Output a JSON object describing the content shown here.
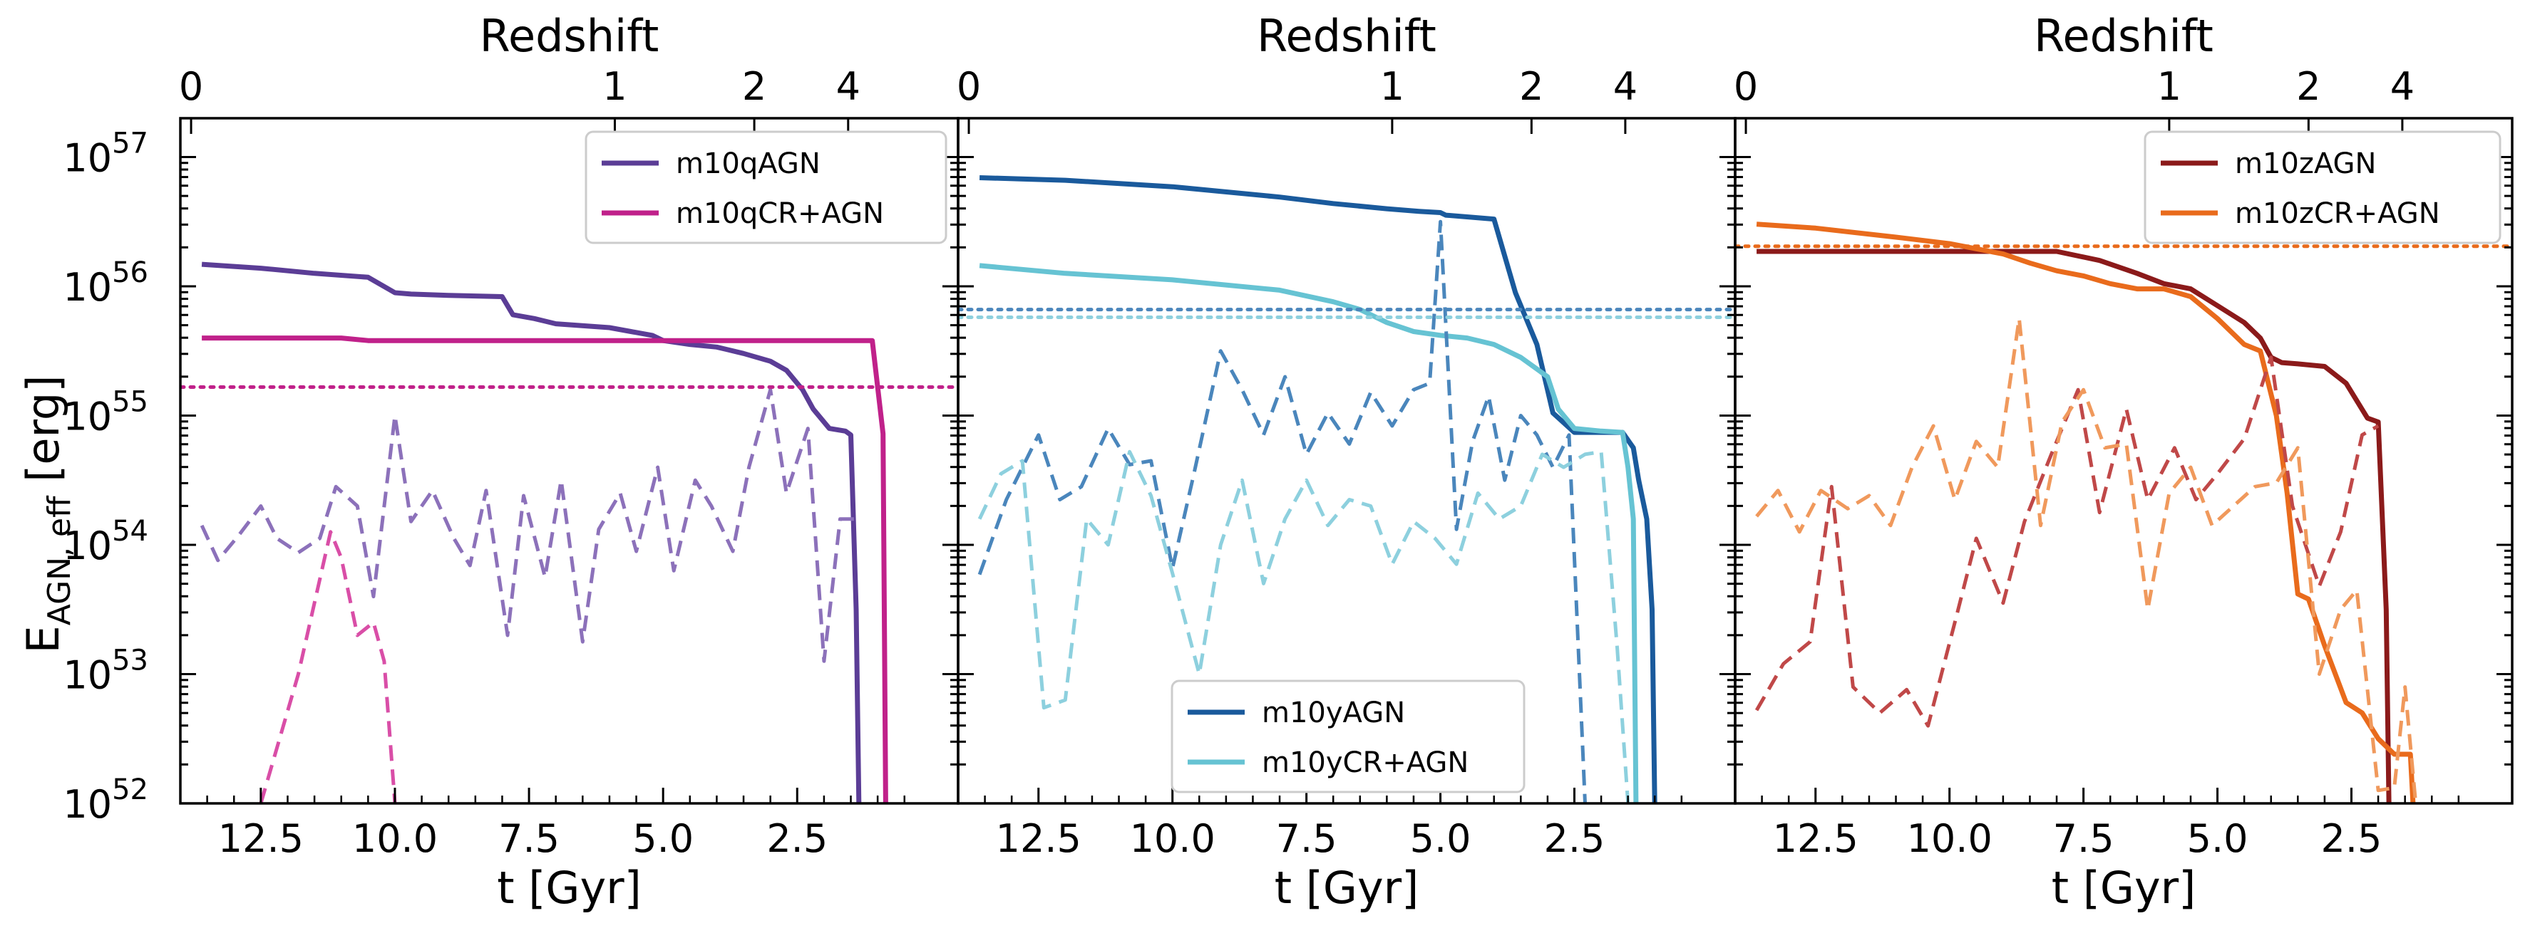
{
  "figure": {
    "ylabel_main": "E",
    "ylabel_sub": "AGN, eff",
    "ylabel_unit": " [erg]",
    "y_ticks": [
      {
        "base": "10",
        "exp": "52",
        "value": 52
      },
      {
        "base": "10",
        "exp": "53",
        "value": 53
      },
      {
        "base": "10",
        "exp": "54",
        "value": 54
      },
      {
        "base": "10",
        "exp": "55",
        "value": 55
      },
      {
        "base": "10",
        "exp": "56",
        "value": 56
      },
      {
        "base": "10",
        "exp": "57",
        "value": 57
      }
    ]
  },
  "chart_data": [
    {
      "type": "line",
      "xlabel": "t [Gyr]",
      "top_xlabel": "Redshift",
      "xlim": [
        14.0,
        -0.5
      ],
      "ylim_log10": [
        52,
        57.3
      ],
      "y_scale": "log",
      "x_ticks": [
        "12.5",
        "10.0",
        "7.5",
        "5.0",
        "2.5"
      ],
      "x_tick_values": [
        12.5,
        10.0,
        7.5,
        5.0,
        2.5
      ],
      "top_ticks": [
        "0",
        "1",
        "2",
        "4"
      ],
      "top_tick_values": [
        13.8,
        5.9,
        3.3,
        1.55
      ],
      "legend_position": "top-right",
      "series": [
        {
          "name": "m10qAGN",
          "color": "#5b3d96",
          "style": "solid",
          "in_legend": true,
          "t": [
            13.6,
            12.5,
            11.5,
            10.5,
            10.0,
            9.7,
            9.0,
            8.0,
            7.8,
            7.4,
            7.0,
            6.0,
            5.6,
            5.2,
            5.0,
            4.5,
            4.0,
            3.5,
            3.0,
            2.7,
            2.4,
            2.2,
            1.9,
            1.6,
            1.5,
            1.4,
            1.35
          ],
          "log10E": [
            56.17,
            56.14,
            56.1,
            56.07,
            55.95,
            55.94,
            55.93,
            55.92,
            55.78,
            55.75,
            55.71,
            55.68,
            55.65,
            55.62,
            55.58,
            55.55,
            55.53,
            55.48,
            55.42,
            55.35,
            55.2,
            55.05,
            54.9,
            54.88,
            54.85,
            53.5,
            52.0
          ]
        },
        {
          "name": "m10qCR+AGN",
          "color": "#c0218a",
          "style": "solid",
          "in_legend": true,
          "t": [
            13.6,
            11.0,
            10.5,
            9.0,
            7.0,
            5.0,
            3.0,
            1.5,
            1.1,
            0.9,
            0.85
          ],
          "log10E": [
            55.6,
            55.6,
            55.58,
            55.58,
            55.58,
            55.58,
            55.58,
            55.58,
            55.58,
            54.86,
            52.0
          ]
        },
        {
          "name": "m10qAGN",
          "color": "#8c71ba",
          "style": "dashed",
          "in_legend": false,
          "t": [
            13.6,
            13.3,
            12.9,
            12.5,
            12.2,
            11.8,
            11.4,
            11.1,
            10.7,
            10.4,
            10.0,
            9.7,
            9.3,
            8.9,
            8.6,
            8.3,
            7.9,
            7.6,
            7.2,
            6.9,
            6.5,
            6.2,
            5.8,
            5.5,
            5.1,
            4.8,
            4.4,
            4.1,
            3.7,
            3.4,
            3.0,
            2.7,
            2.3,
            2.0,
            1.7,
            1.4
          ],
          "log10E": [
            54.15,
            53.88,
            54.08,
            54.3,
            54.05,
            53.94,
            54.05,
            54.45,
            54.3,
            53.6,
            55.0,
            54.18,
            54.42,
            54.05,
            53.84,
            54.42,
            53.3,
            54.38,
            53.75,
            54.5,
            53.25,
            54.12,
            54.4,
            53.95,
            54.6,
            53.8,
            54.5,
            54.3,
            53.95,
            54.6,
            55.2,
            54.4,
            54.9,
            53.1,
            54.2,
            54.2
          ]
        },
        {
          "name": "m10qCR+AGN",
          "color": "#d94ea7",
          "style": "dashed",
          "in_legend": false,
          "t": [
            12.5,
            11.8,
            11.2,
            11.0,
            10.7,
            10.4,
            10.2,
            10.0
          ],
          "log10E": [
            52.0,
            53.0,
            54.1,
            53.9,
            53.3,
            53.4,
            53.1,
            52.0
          ]
        },
        {
          "name": "m10qCR+AGN",
          "color": "#c0218a",
          "style": "dotted",
          "in_legend": false,
          "t": [
            14.0,
            -0.5
          ],
          "log10E": [
            55.22,
            55.22
          ]
        }
      ]
    },
    {
      "type": "line",
      "xlabel": "t [Gyr]",
      "top_xlabel": "Redshift",
      "xlim": [
        14.0,
        -0.5
      ],
      "ylim_log10": [
        52,
        57.3
      ],
      "y_scale": "log",
      "x_ticks": [
        "12.5",
        "10.0",
        "7.5",
        "5.0",
        "2.5"
      ],
      "x_tick_values": [
        12.5,
        10.0,
        7.5,
        5.0,
        2.5
      ],
      "top_ticks": [
        "0",
        "1",
        "2",
        "4"
      ],
      "top_tick_values": [
        13.8,
        5.9,
        3.3,
        1.55
      ],
      "legend_position": "bottom-center",
      "series": [
        {
          "name": "m10yAGN",
          "color": "#1a5a9c",
          "style": "solid",
          "in_legend": true,
          "t": [
            13.6,
            12.0,
            10.0,
            8.0,
            7.0,
            6.0,
            5.4,
            5.0,
            4.9,
            4.0,
            3.6,
            3.2,
            2.9,
            2.5,
            2.0,
            1.6,
            1.4,
            1.3,
            1.15,
            1.05,
            1.0
          ],
          "log10E": [
            56.84,
            56.82,
            56.77,
            56.69,
            56.64,
            56.6,
            56.58,
            56.57,
            56.55,
            56.52,
            55.95,
            55.55,
            55.02,
            54.87,
            54.87,
            54.87,
            54.75,
            54.5,
            54.2,
            53.5,
            52.0
          ]
        },
        {
          "name": "m10yCR+AGN",
          "color": "#66c3d3",
          "style": "solid",
          "in_legend": true,
          "t": [
            13.6,
            12.0,
            10.0,
            8.0,
            7.0,
            6.5,
            6.0,
            5.5,
            5.0,
            4.5,
            4.0,
            3.5,
            3.0,
            2.8,
            2.5,
            2.0,
            1.6,
            1.5,
            1.4,
            1.35
          ],
          "log10E": [
            56.16,
            56.1,
            56.05,
            55.97,
            55.88,
            55.82,
            55.72,
            55.65,
            55.62,
            55.6,
            55.55,
            55.45,
            55.3,
            55.05,
            54.9,
            54.88,
            54.87,
            54.6,
            54.2,
            52.0
          ]
        },
        {
          "name": "m10yAGN",
          "color": "#4a86bc",
          "style": "dashed",
          "in_legend": false,
          "t": [
            13.6,
            13.1,
            12.5,
            12.1,
            11.7,
            11.2,
            10.8,
            10.4,
            10.0,
            9.6,
            9.1,
            8.7,
            8.3,
            7.9,
            7.5,
            7.1,
            6.7,
            6.3,
            5.9,
            5.5,
            5.2,
            5.0,
            4.7,
            4.4,
            4.1,
            3.8,
            3.5,
            3.2,
            2.9,
            2.6,
            2.3
          ],
          "log10E": [
            53.77,
            54.35,
            54.85,
            54.35,
            54.45,
            54.9,
            54.62,
            54.65,
            53.82,
            54.55,
            55.5,
            55.2,
            54.85,
            55.3,
            54.7,
            55.02,
            54.78,
            55.18,
            54.92,
            55.2,
            55.25,
            56.5,
            54.12,
            54.8,
            55.15,
            54.5,
            55.0,
            54.85,
            54.6,
            54.85,
            52.0
          ]
        },
        {
          "name": "m10yCR+AGN",
          "color": "#8dd0de",
          "style": "dashed",
          "in_legend": false,
          "t": [
            13.6,
            13.2,
            12.8,
            12.4,
            12.0,
            11.6,
            11.2,
            10.8,
            10.4,
            10.0,
            9.5,
            9.1,
            8.7,
            8.3,
            7.9,
            7.5,
            7.1,
            6.7,
            6.3,
            5.9,
            5.5,
            5.1,
            4.7,
            4.3,
            3.9,
            3.5,
            3.1,
            2.7,
            2.3,
            2.0,
            1.7,
            1.5
          ],
          "log10E": [
            54.2,
            54.55,
            54.65,
            52.74,
            52.8,
            54.2,
            54.0,
            54.72,
            54.38,
            53.78,
            53.0,
            54.0,
            54.5,
            53.7,
            54.2,
            54.5,
            54.15,
            54.35,
            54.3,
            53.85,
            54.18,
            54.05,
            53.85,
            54.4,
            54.2,
            54.3,
            54.7,
            54.6,
            54.7,
            54.72,
            53.2,
            52.0
          ]
        },
        {
          "name": "m10yAGN",
          "color": "#4a86bc",
          "style": "dotted",
          "in_legend": false,
          "t": [
            14.0,
            -0.5
          ],
          "log10E": [
            55.82,
            55.82
          ]
        },
        {
          "name": "m10yCR+AGN",
          "color": "#8dd0de",
          "style": "dotted",
          "in_legend": false,
          "t": [
            14.0,
            -0.5
          ],
          "log10E": [
            55.76,
            55.76
          ]
        }
      ]
    },
    {
      "type": "line",
      "xlabel": "t [Gyr]",
      "top_xlabel": "Redshift",
      "xlim": [
        14.0,
        -0.5
      ],
      "ylim_log10": [
        52,
        57.3
      ],
      "y_scale": "log",
      "x_ticks": [
        "12.5",
        "10.0",
        "7.5",
        "5.0",
        "2.5"
      ],
      "x_tick_values": [
        12.5,
        10.0,
        7.5,
        5.0,
        2.5
      ],
      "top_ticks": [
        "0",
        "1",
        "2",
        "4"
      ],
      "top_tick_values": [
        13.8,
        5.9,
        3.3,
        1.55
      ],
      "legend_position": "top-right",
      "series": [
        {
          "name": "m10zAGN",
          "color": "#8b1a1a",
          "style": "solid",
          "in_legend": true,
          "t": [
            13.6,
            12.0,
            10.0,
            8.0,
            7.2,
            6.5,
            6.0,
            5.5,
            5.0,
            4.5,
            4.2,
            4.0,
            3.8,
            3.5,
            3.0,
            2.6,
            2.2,
            2.0,
            1.85,
            1.8
          ],
          "log10E": [
            56.27,
            56.27,
            56.27,
            56.27,
            56.2,
            56.1,
            56.02,
            55.98,
            55.85,
            55.72,
            55.6,
            55.45,
            55.41,
            55.4,
            55.38,
            55.25,
            54.98,
            54.95,
            53.5,
            52.0
          ]
        },
        {
          "name": "m10zCR+AGN",
          "color": "#e96b1c",
          "style": "solid",
          "in_legend": true,
          "t": [
            13.6,
            12.5,
            11.0,
            10.0,
            9.0,
            8.5,
            8.0,
            7.5,
            7.0,
            6.5,
            6.0,
            5.5,
            5.0,
            4.5,
            4.2,
            3.9,
            3.7,
            3.5,
            3.3,
            3.0,
            2.6,
            2.3,
            2.0,
            1.7,
            1.4,
            1.35
          ],
          "log10E": [
            56.48,
            56.45,
            56.38,
            56.33,
            56.25,
            56.18,
            56.12,
            56.08,
            56.02,
            55.98,
            55.98,
            55.92,
            55.75,
            55.55,
            55.5,
            55.0,
            54.4,
            53.62,
            53.58,
            53.22,
            52.78,
            52.7,
            52.5,
            52.38,
            52.38,
            52.0
          ]
        },
        {
          "name": "m10zAGN",
          "color": "#c04848",
          "style": "dashed",
          "in_legend": false,
          "t": [
            13.6,
            13.1,
            12.6,
            12.2,
            11.8,
            11.3,
            10.8,
            10.4,
            9.9,
            9.5,
            9.0,
            8.6,
            8.1,
            7.6,
            7.2,
            6.7,
            6.3,
            5.8,
            5.4,
            5.0,
            4.5,
            4.0,
            3.6,
            3.1,
            2.7,
            2.3,
            2.0
          ],
          "log10E": [
            52.72,
            53.08,
            53.25,
            54.45,
            52.9,
            52.7,
            52.88,
            52.6,
            53.4,
            54.05,
            53.55,
            54.18,
            54.7,
            55.2,
            54.25,
            55.05,
            54.35,
            54.75,
            54.35,
            54.55,
            54.82,
            55.45,
            54.3,
            53.68,
            54.1,
            54.85,
            54.92
          ]
        },
        {
          "name": "m10zCR+AGN",
          "color": "#f0995c",
          "style": "dashed",
          "in_legend": false,
          "t": [
            13.6,
            13.2,
            12.8,
            12.4,
            11.9,
            11.5,
            11.1,
            10.7,
            10.3,
            9.9,
            9.5,
            9.1,
            8.7,
            8.3,
            7.9,
            7.5,
            7.1,
            6.7,
            6.3,
            5.9,
            5.5,
            5.1,
            4.7,
            4.3,
            3.9,
            3.5,
            3.1,
            2.7,
            2.4,
            2.0,
            1.7,
            1.5,
            1.3
          ],
          "log10E": [
            54.22,
            54.42,
            54.1,
            54.42,
            54.28,
            54.38,
            54.15,
            54.6,
            54.92,
            54.35,
            54.8,
            54.6,
            55.75,
            54.15,
            54.95,
            55.2,
            54.75,
            54.78,
            53.5,
            54.4,
            54.6,
            54.15,
            54.3,
            54.45,
            54.48,
            54.75,
            53.0,
            53.5,
            53.65,
            52.1,
            52.12,
            52.9,
            52.0
          ]
        },
        {
          "name": "m10zCR+AGN",
          "color": "#e96b1c",
          "style": "dotted",
          "in_legend": false,
          "t": [
            14.0,
            -0.5
          ],
          "log10E": [
            56.31,
            56.31
          ]
        }
      ]
    }
  ]
}
